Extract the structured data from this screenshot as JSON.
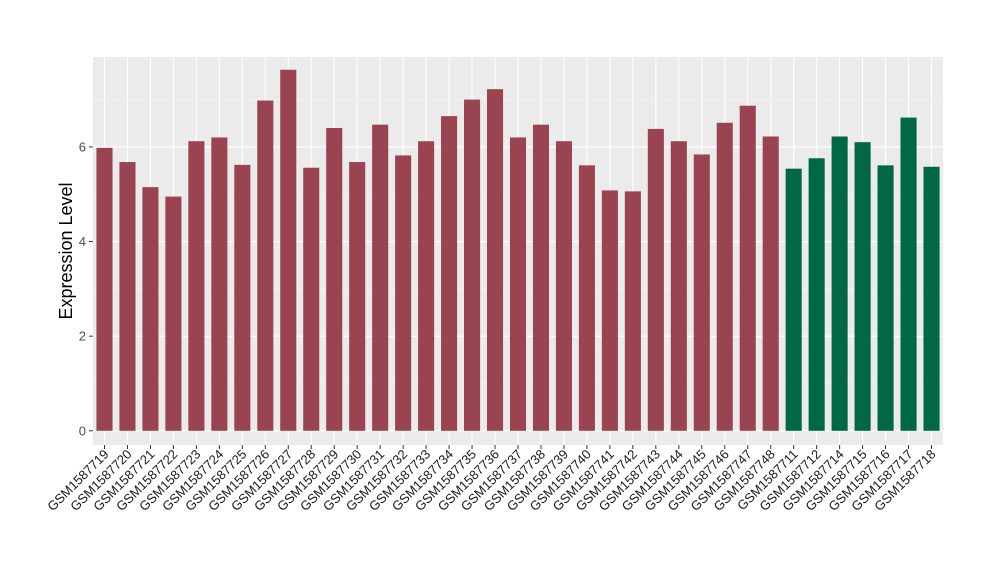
{
  "chart_data": {
    "type": "bar",
    "ylabel": "Expression Level",
    "xlabel": "",
    "ylim": [
      -0.3,
      7.9
    ],
    "yticks": [
      0,
      2,
      4,
      6
    ],
    "grid": true,
    "background": "#EBEBEB",
    "grid_major_color": "#FFFFFF",
    "grid_minor_color": "#F5F5F5",
    "legend": "none",
    "groups": [
      {
        "color": "#9B4451"
      },
      {
        "color": "#006847"
      }
    ],
    "categories": [
      "GSM1587719",
      "GSM1587720",
      "GSM1587721",
      "GSM1587722",
      "GSM1587723",
      "GSM1587724",
      "GSM1587725",
      "GSM1587726",
      "GSM1587727",
      "GSM1587728",
      "GSM1587729",
      "GSM1587730",
      "GSM1587731",
      "GSM1587732",
      "GSM1587733",
      "GSM1587734",
      "GSM1587735",
      "GSM1587736",
      "GSM1587737",
      "GSM1587738",
      "GSM1587739",
      "GSM1587740",
      "GSM1587741",
      "GSM1587742",
      "GSM1587743",
      "GSM1587744",
      "GSM1587745",
      "GSM1587746",
      "GSM1587747",
      "GSM1587748",
      "GSM1587711",
      "GSM1587712",
      "GSM1587714",
      "GSM1587715",
      "GSM1587716",
      "GSM1587717",
      "GSM1587718"
    ],
    "values": [
      5.98,
      5.68,
      5.15,
      4.95,
      6.12,
      6.2,
      5.62,
      6.98,
      7.63,
      5.56,
      6.4,
      5.68,
      6.47,
      5.82,
      6.12,
      6.65,
      7.0,
      7.22,
      6.2,
      6.47,
      6.12,
      5.61,
      5.08,
      5.06,
      6.38,
      6.12,
      5.84,
      6.51,
      6.87,
      6.22,
      5.54,
      5.76,
      6.22,
      6.1,
      5.61,
      6.62,
      5.58
    ],
    "group_index": [
      0,
      0,
      0,
      0,
      0,
      0,
      0,
      0,
      0,
      0,
      0,
      0,
      0,
      0,
      0,
      0,
      0,
      0,
      0,
      0,
      0,
      0,
      0,
      0,
      0,
      0,
      0,
      0,
      0,
      0,
      1,
      1,
      1,
      1,
      1,
      1,
      1
    ]
  }
}
